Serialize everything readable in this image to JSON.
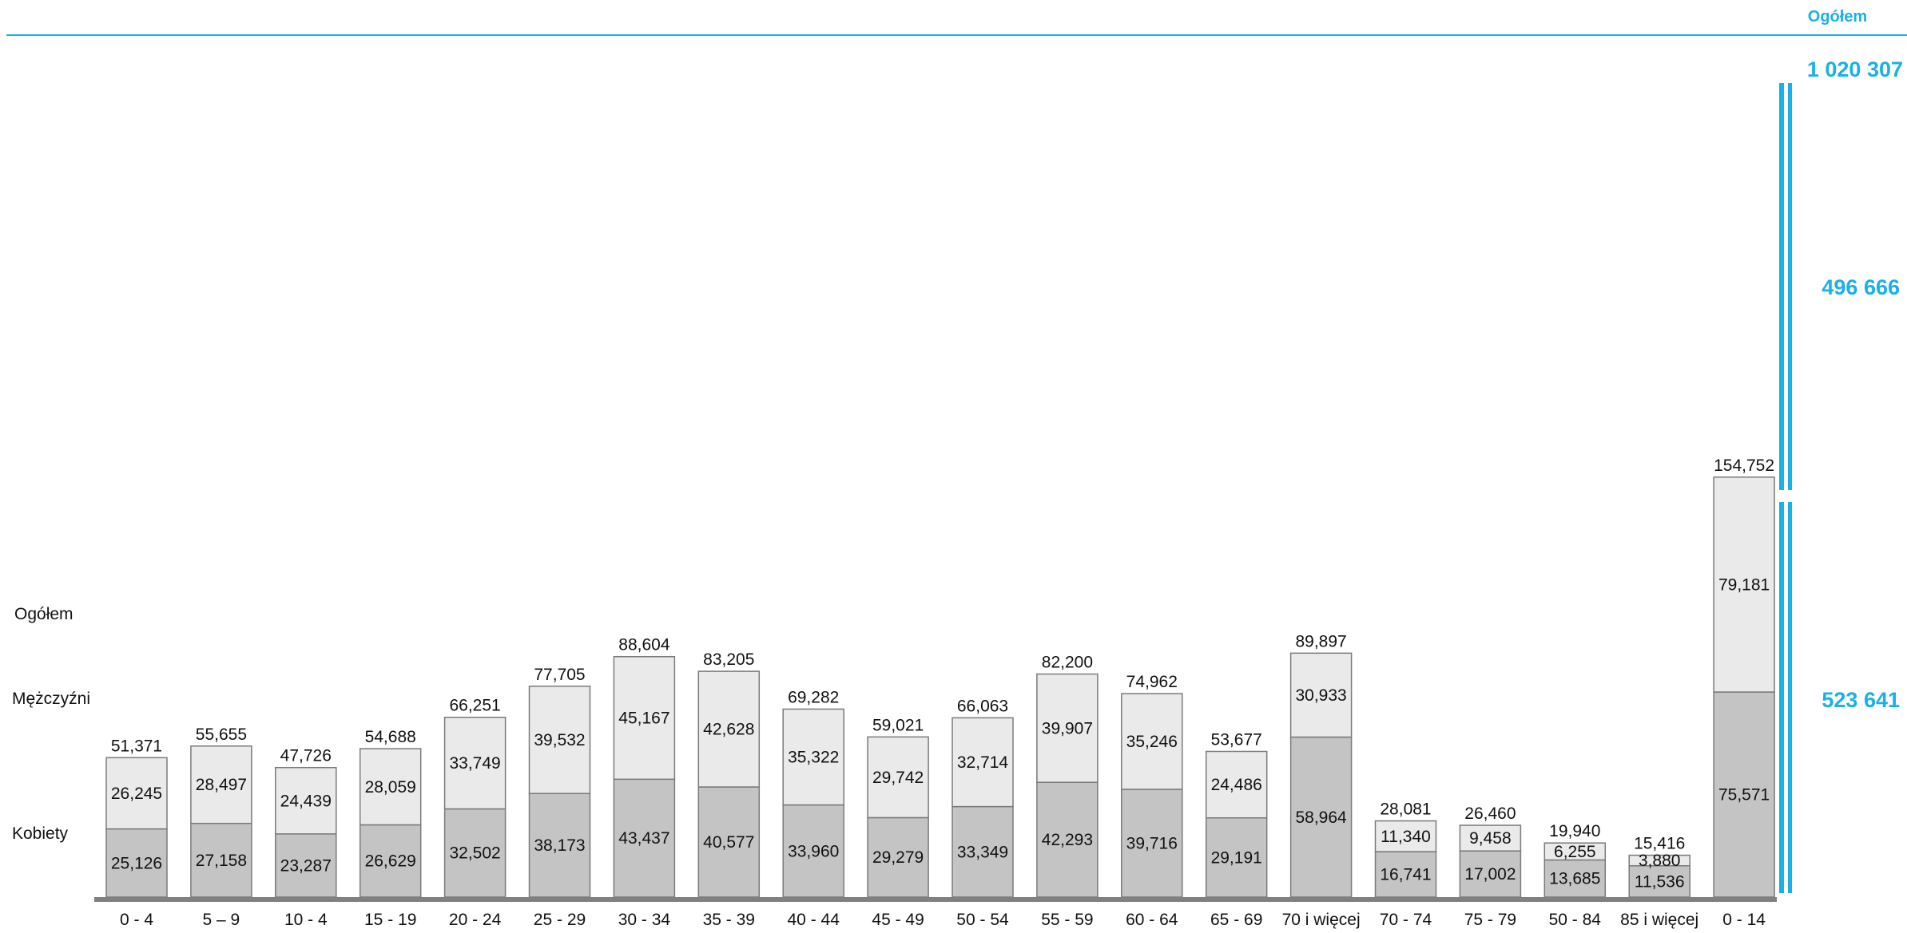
{
  "chart_data": {
    "type": "bar",
    "stacked": true,
    "categories": [
      "0 - 4",
      "5 – 9",
      "10 - 4",
      "15 - 19",
      "20 - 24",
      "25 - 29",
      "30 - 34",
      "35 - 39",
      "40 - 44",
      "45 - 49",
      "50 - 54",
      "55 - 59",
      "60 - 64",
      "65 - 69",
      "70 i więcej",
      "70 - 74",
      "75 - 79",
      "50 - 84",
      "85 i więcej",
      "0 - 14"
    ],
    "totals_labels": [
      "51,371",
      "55,655",
      "47,726",
      "54,688",
      "66,251",
      "77,705",
      "88,604",
      "83,205",
      "69,282",
      "59,021",
      "66,063",
      "82,200",
      "74,962",
      "53,677",
      "89,897",
      "28,081",
      "26,460",
      "19,940",
      "15,416",
      "154,752"
    ],
    "series": [
      {
        "name": "Kobiety",
        "color": "#c4c4c4",
        "values": [
          25126,
          27158,
          23287,
          26629,
          32502,
          38173,
          43437,
          40577,
          33960,
          29279,
          33349,
          42293,
          39716,
          29191,
          58964,
          16741,
          17002,
          13685,
          11536,
          75571
        ],
        "labels": [
          "25,126",
          "27,158",
          "23,287",
          "26,629",
          "32,502",
          "38,173",
          "43,437",
          "40,577",
          "33,960",
          "29,279",
          "33,349",
          "42,293",
          "39,716",
          "29,191",
          "58,964",
          "16,741",
          "17,002",
          "13,685",
          "11,536",
          "75,571"
        ]
      },
      {
        "name": "Mężczyźni",
        "color": "#eaeaea",
        "values": [
          26245,
          28497,
          24439,
          28059,
          33749,
          39532,
          45167,
          42628,
          35322,
          29742,
          32714,
          39907,
          35246,
          24486,
          30933,
          11340,
          9458,
          6255,
          3880,
          79181
        ],
        "labels": [
          "26,245",
          "28,497",
          "24,439",
          "28,059",
          "33,749",
          "39,532",
          "45,167",
          "42,628",
          "35,322",
          "29,742",
          "32,714",
          "39,907",
          "35,246",
          "24,486",
          "30,933",
          "11,340",
          "9,458",
          "6,255",
          "3,880",
          "79,181"
        ]
      }
    ],
    "row_labels": {
      "total": "Ogółem",
      "men": "Mężczyźni",
      "women": "Kobiety"
    },
    "right_panel": {
      "header": "Ogółem",
      "total": "1 020 307",
      "men": "496 666",
      "women": "523 641"
    },
    "ylim": [
      0,
      160000
    ],
    "grid": false,
    "accent_color": "#1ab0e8",
    "outline_color": "#7a7a7a"
  }
}
